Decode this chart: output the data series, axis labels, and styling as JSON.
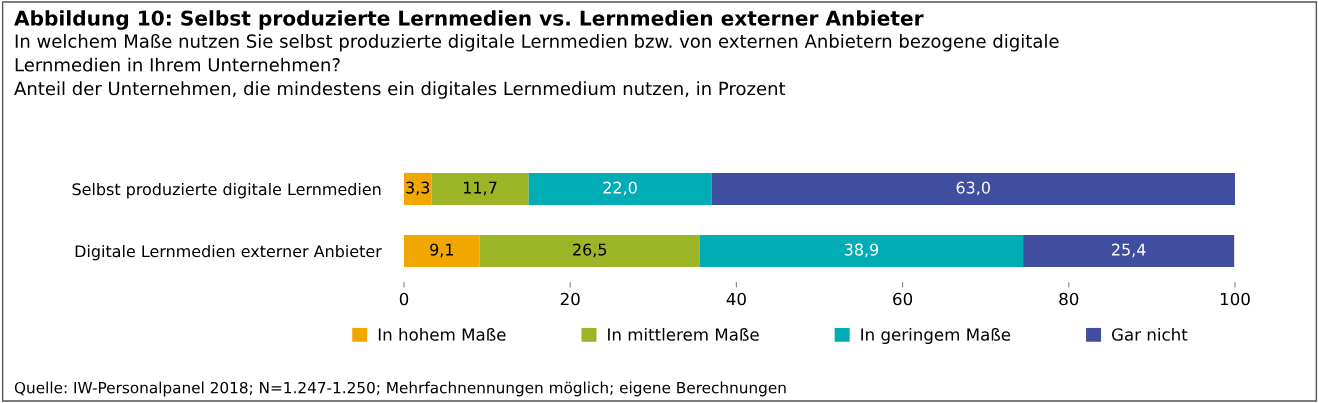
{
  "chart_data": {
    "type": "bar",
    "orientation": "horizontal",
    "stacked": true,
    "title": "Abbildung 10: Selbst produzierte Lernmedien vs. Lernmedien externer Anbieter",
    "subtitle": "In welchem Maße nutzen Sie selbst produzierte digitale Lernmedien bzw. von externen Anbietern bezogene digitale\nLernmedien in Ihrem Unternehmen?\nAnteil der Unternehmen, die mindestens ein digitales Lernmedium nutzen, in Prozent",
    "categories": [
      "Selbst produzierte digitale Lernmedien",
      "Digitale Lernmedien externer Anbieter"
    ],
    "series": [
      {
        "name": "In hohem Maße",
        "color": "#f0a800",
        "values": [
          3.3,
          9.1
        ],
        "value_labels": [
          "3,3",
          "9,1"
        ]
      },
      {
        "name": "In mittlerem Maße",
        "color": "#9bb526",
        "values": [
          11.7,
          26.5
        ],
        "value_labels": [
          "11,7",
          "26,5"
        ]
      },
      {
        "name": "In geringem Maße",
        "color": "#00adb5",
        "values": [
          22.0,
          38.9
        ],
        "value_labels": [
          "22,0",
          "38,9"
        ]
      },
      {
        "name": "Gar nicht",
        "color": "#3f4e9e",
        "values": [
          63.0,
          25.4
        ],
        "value_labels": [
          "63,0",
          "25,4"
        ]
      }
    ],
    "xlim": [
      0,
      100
    ],
    "xticks": [
      0,
      20,
      40,
      60,
      80,
      100
    ],
    "grid": false,
    "legend": "bottom",
    "annotations": [
      "Quelle: IW-Personalpanel 2018; N=1.247-1.250; Mehrfachnennungen möglich; eigene Berechnungen"
    ]
  }
}
